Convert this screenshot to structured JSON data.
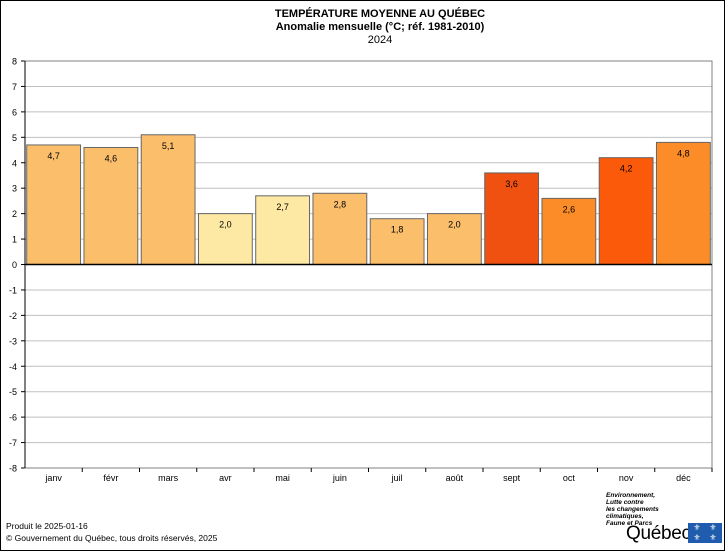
{
  "chart_data": {
    "type": "bar",
    "title": "TEMPÉRATURE MOYENNE AU QUÉBEC",
    "subtitle": "Anomalie mensuelle (°C; réf. 1981-2010)",
    "year": "2024",
    "categories": [
      "janv",
      "févr",
      "mars",
      "avr",
      "mai",
      "juin",
      "juil",
      "août",
      "sept",
      "oct",
      "nov",
      "déc"
    ],
    "values": [
      4.7,
      4.6,
      5.1,
      2.0,
      2.7,
      2.8,
      1.8,
      2.0,
      3.6,
      2.6,
      4.2,
      4.8
    ],
    "value_labels": [
      "4,7",
      "4,6",
      "5,1",
      "2,0",
      "2,7",
      "2,8",
      "1,8",
      "2,0",
      "3,6",
      "2,6",
      "4,2",
      "4,8"
    ],
    "bar_colors": [
      "#fbbf6c",
      "#fbbf6c",
      "#fbbf6c",
      "#fde9a3",
      "#fde9a3",
      "#fbbf6c",
      "#fbbf6c",
      "#fbbf6c",
      "#f05010",
      "#fb8c28",
      "#fb5a0a",
      "#fb8c28"
    ],
    "ylim": [
      -8,
      8
    ],
    "yticks": [
      "8",
      "7",
      "6",
      "5",
      "4",
      "3",
      "2",
      "1",
      "0",
      "-1",
      "-2",
      "-3",
      "-4",
      "-5",
      "-6",
      "-7",
      "-8"
    ],
    "grid": true,
    "xlabel": "",
    "ylabel": ""
  },
  "footer": {
    "produced": "Produit le 2025-01-16",
    "copyright": "© Gouvernement du Québec, tous droits réservés, 2025"
  },
  "ministry": {
    "lines": [
      "Environnement,",
      "Lutte contre",
      "les changements",
      "climatiques,",
      "Faune et Parcs"
    ]
  },
  "logo": {
    "wordmark": "Québec",
    "flag_color": "#1f5cad"
  }
}
